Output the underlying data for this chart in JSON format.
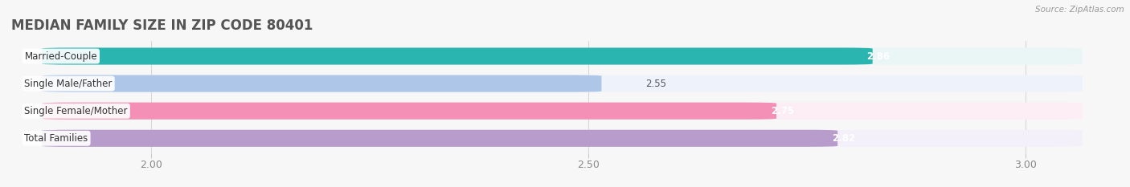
{
  "title": "MEDIAN FAMILY SIZE IN ZIP CODE 80401",
  "source": "Source: ZipAtlas.com",
  "categories": [
    "Married-Couple",
    "Single Male/Father",
    "Single Female/Mother",
    "Total Families"
  ],
  "values": [
    2.86,
    2.55,
    2.75,
    2.82
  ],
  "bar_colors": [
    "#2ab5b0",
    "#aec6e8",
    "#f490b5",
    "#b89ccc"
  ],
  "bar_bg_colors": [
    "#eaf6f6",
    "#eef2fb",
    "#fceef4",
    "#f4f0f9"
  ],
  "value_inside": [
    true,
    false,
    true,
    true
  ],
  "value_colors_inside": [
    "white",
    "#666666",
    "white",
    "white"
  ],
  "xlim_min": 1.84,
  "xlim_max": 3.1,
  "xticks": [
    2.0,
    2.5,
    3.0
  ],
  "xtick_labels": [
    "2.00",
    "2.50",
    "3.00"
  ],
  "background_color": "#f7f7f7",
  "bar_height": 0.62,
  "bar_gap": 0.38,
  "label_fontsize": 8.5,
  "value_fontsize": 8.5,
  "title_fontsize": 12
}
